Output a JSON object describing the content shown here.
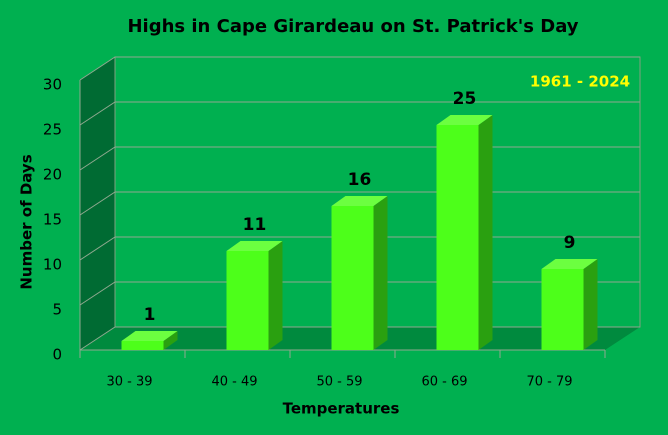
{
  "chart_data": {
    "type": "bar",
    "title": "Highs in Cape Girardeau on St. Patrick's Day",
    "annotation": "1961 - 2024",
    "x_label": "Temperatures",
    "y_label": "Number of Days",
    "categories": [
      "30 - 39",
      "40 - 49",
      "50 - 59",
      "60 - 69",
      "70 - 79"
    ],
    "values": [
      1,
      11,
      16,
      25,
      9
    ],
    "color": "#4dff1a",
    "ylim": [
      0,
      30
    ],
    "yticks": [
      0,
      5,
      10,
      15,
      20,
      25,
      30
    ],
    "grid": true
  }
}
